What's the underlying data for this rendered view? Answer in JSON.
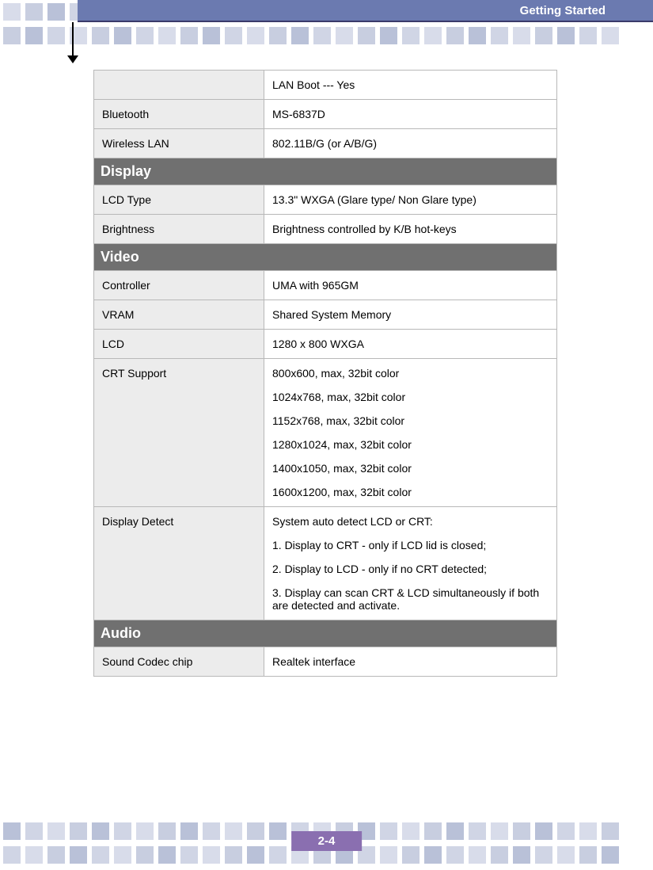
{
  "header": {
    "title": "Getting Started"
  },
  "footer": {
    "page": "2-4"
  },
  "colors": {
    "header_bg": "#6b7ab0",
    "header_border": "#3a3a6a",
    "section_bg": "#707070",
    "label_bg": "#ececec",
    "border": "#b8b8b8",
    "footer_bg": "#8a6fb0",
    "deco_light": "#d8dcea",
    "deco_mid": "#c8cee0",
    "deco_dark": "#b9c1d8"
  },
  "deco": {
    "square_count": 28,
    "palette": [
      "#d8dcea",
      "#c8cee0",
      "#b9c1d8",
      "#d0d5e5"
    ]
  },
  "table": {
    "rows": [
      {
        "type": "row",
        "label": "",
        "value": "LAN Boot --- Yes"
      },
      {
        "type": "row",
        "label": "Bluetooth",
        "value": "MS-6837D"
      },
      {
        "type": "row",
        "label": "Wireless LAN",
        "value": "802.11B/G (or A/B/G)"
      },
      {
        "type": "section",
        "title": "Display"
      },
      {
        "type": "row",
        "label": "LCD Type",
        "value": "13.3\" WXGA (Glare type/ Non Glare type)"
      },
      {
        "type": "row",
        "label": "Brightness",
        "value": "Brightness controlled by K/B hot-keys"
      },
      {
        "type": "section",
        "title": "Video"
      },
      {
        "type": "row",
        "label": "Controller",
        "value": "UMA with 965GM"
      },
      {
        "type": "row",
        "label": "VRAM",
        "value": "Shared System Memory"
      },
      {
        "type": "row",
        "label": "LCD",
        "value": "1280 x 800 WXGA"
      },
      {
        "type": "multirow",
        "label": "CRT Support",
        "lines": [
          "800x600, max, 32bit color",
          "1024x768, max, 32bit color",
          "1152x768, max, 32bit color",
          "1280x1024, max, 32bit color",
          "1400x1050, max, 32bit color",
          "1600x1200, max, 32bit color"
        ]
      },
      {
        "type": "multirow",
        "label": "Display Detect",
        "lines": [
          "System auto detect LCD or CRT:",
          "1. Display to CRT - only if LCD lid is closed;",
          "2. Display to LCD - only if no CRT detected;",
          "3. Display can scan CRT & LCD simultaneously if both are detected and activate."
        ]
      },
      {
        "type": "section",
        "title": "Audio"
      },
      {
        "type": "row",
        "label": "Sound Codec chip",
        "value": "Realtek interface"
      }
    ]
  }
}
